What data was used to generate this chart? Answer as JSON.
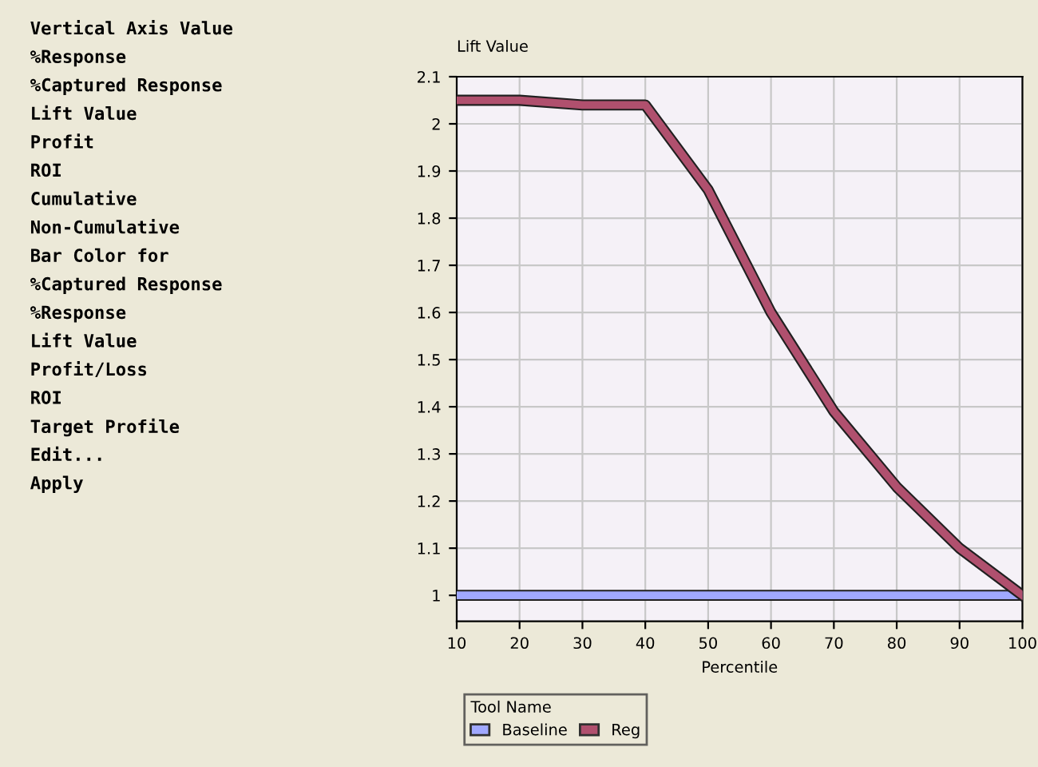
{
  "chart_data": [
    {
      "type": "other",
      "annotations": [
        "Vertical Axis Value",
        "%Response",
        "%Captured Response",
        "Lift Value",
        "Profit",
        "ROI",
        "Cumulative",
        "Non-Cumulative",
        "Bar Color for",
        "%Captured Response",
        "%Response",
        "Lift Value",
        "Profit/Loss",
        "ROI",
        "Target Profile",
        "Edit...",
        "Apply"
      ]
    },
    {
      "type": "line",
      "ylabel": "Lift Value",
      "xlabel": "Percentile",
      "legend_title": "Tool Name",
      "legend": "bottom",
      "grid": true,
      "marker": "none",
      "line_style": "solid",
      "x": [
        10,
        20,
        30,
        40,
        50,
        60,
        70,
        80,
        90,
        100
      ],
      "xlim": [
        10,
        100
      ],
      "xticks": [
        10,
        20,
        30,
        40,
        50,
        60,
        70,
        80,
        90,
        100
      ],
      "ylim": [
        0.945,
        2.1
      ],
      "yticks": [
        1,
        1.1,
        1.2,
        1.3,
        1.4,
        1.5,
        1.6,
        1.7,
        1.8,
        1.9,
        2,
        2.1
      ],
      "series": [
        {
          "name": "Baseline",
          "color": "#a0a8ff",
          "values": [
            1,
            1,
            1,
            1,
            1,
            1,
            1,
            1,
            1,
            1
          ]
        },
        {
          "name": "Reg",
          "color": "#b0506e",
          "values": [
            2.05,
            2.05,
            2.04,
            2.04,
            1.86,
            1.6,
            1.39,
            1.23,
            1.1,
            1.0
          ]
        }
      ]
    }
  ]
}
